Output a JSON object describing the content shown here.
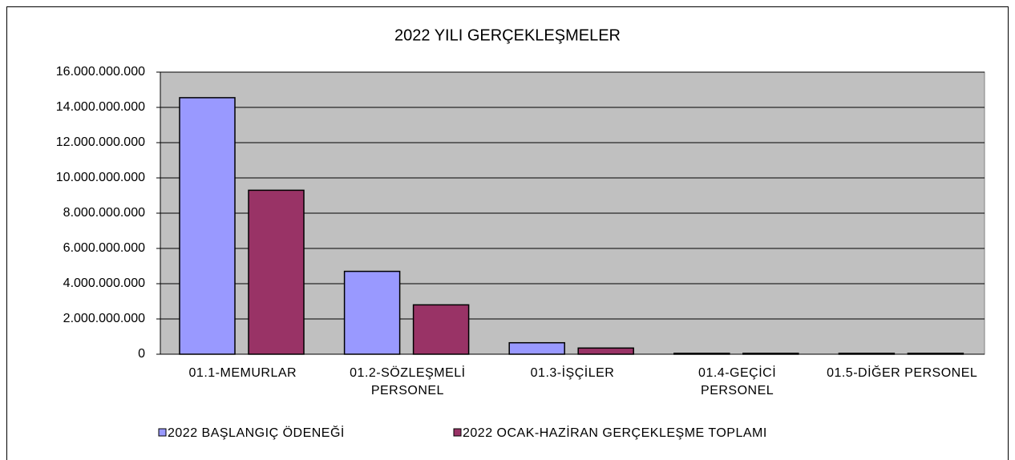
{
  "chart_data": {
    "type": "bar",
    "title": "2022 YILI GERÇEKLEŞMELER",
    "categories": [
      "01.1-MEMURLAR",
      "01.2-SÖZLEŞMELİ PERSONEL",
      "01.3-İŞÇİLER",
      "01.4-GEÇİCİ PERSONEL",
      "01.5-DİĞER PERSONEL"
    ],
    "series": [
      {
        "name": "2022 BAŞLANGIÇ ÖDENEĞİ",
        "color": "#9999ff",
        "values": [
          14550000000,
          4700000000,
          650000000,
          50000000,
          50000000
        ]
      },
      {
        "name": "2022 OCAK-HAZİRAN GERÇEKLEŞME TOPLAMI",
        "color": "#993366",
        "values": [
          9300000000,
          2800000000,
          350000000,
          50000000,
          50000000
        ]
      }
    ],
    "ylim": [
      0,
      16000000000
    ],
    "yticks": [
      0,
      {
        "value": 2000000000,
        "label": "2.000.000.000"
      },
      {
        "value": 4000000000,
        "label": "4.000.000.000"
      },
      {
        "value": 6000000000,
        "label": "6.000.000.000"
      },
      {
        "value": 8000000000,
        "label": "8.000.000.000"
      },
      {
        "value": 10000000000,
        "label": "10.000.000.000"
      },
      {
        "value": 12000000000,
        "label": "12.000.000.000"
      },
      {
        "value": 14000000000,
        "label": "14.000.000.000"
      },
      {
        "value": 16000000000,
        "label": "16.000.000.000"
      }
    ],
    "grid": true,
    "legend": "bottom"
  }
}
